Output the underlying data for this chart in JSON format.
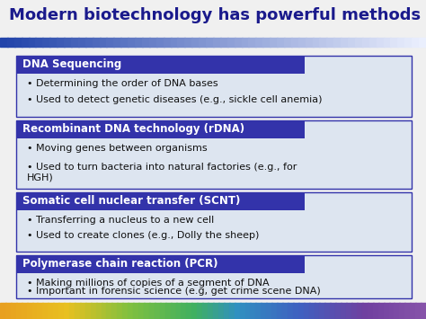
{
  "title": "Modern biotechnology has powerful methods",
  "title_color": "#1a1a8c",
  "title_fontsize": 13,
  "bg_color": "#f0f0f0",
  "header_bg": "#3333aa",
  "header_text_color": "#ffffff",
  "header_fontsize": 8.5,
  "box_border_color": "#3333aa",
  "box_bg_color": "#dde5f0",
  "bullet_fontsize": 8,
  "bullet_color": "#111111",
  "sections": [
    {
      "header": "DNA Sequencing",
      "bullets": [
        "Determining the order of DNA bases",
        "Used to detect genetic diseases (e.g., sickle cell anemia)"
      ]
    },
    {
      "header": "Recombinant DNA technology (rDNA)",
      "bullets": [
        "Moving genes between organisms",
        "Used to turn bacteria into natural factories (e.g., for\nHGH)"
      ]
    },
    {
      "header": "Somatic cell nuclear transfer (SCNT)",
      "bullets": [
        "Transferring a nucleus to a new cell",
        "Used to create clones (e.g., Dolly the sheep)"
      ]
    },
    {
      "header": "Polymerase chain reaction (PCR)",
      "bullets": [
        "Making millions of copies of a segment of DNA",
        "Important in forensic science (e.g, get crime scene DNA)"
      ]
    }
  ],
  "top_gradient_start": "#2244aa",
  "top_gradient_end": "#eef2ff",
  "bottom_gradient_start": "#e8a020",
  "bottom_gradient_end": "#8855aa"
}
